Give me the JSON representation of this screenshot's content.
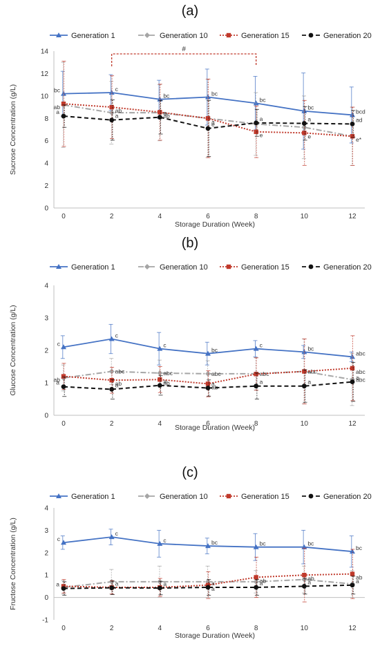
{
  "chart_data": [
    {
      "type": "line",
      "panel_label": "(a)",
      "xlabel": "Storage Duration (Week)",
      "ylabel": "Sucrose Concentration (g/L)",
      "ylim": [
        0,
        14
      ],
      "yticks": [
        0,
        2,
        4,
        6,
        8,
        10,
        12,
        14
      ],
      "x": [
        0,
        2,
        4,
        6,
        8,
        10,
        12
      ],
      "grid": false,
      "legend_position": "top",
      "bracket": {
        "from": 2,
        "to": 8,
        "label": "#"
      },
      "series": [
        {
          "name": "Generation 1",
          "values": [
            10.2,
            10.3,
            9.7,
            9.9,
            9.35,
            8.65,
            8.3
          ],
          "errors": [
            2.0,
            1.6,
            1.7,
            2.5,
            2.4,
            3.4,
            2.5
          ],
          "labels": [
            "bc",
            "c",
            "bc",
            "bc",
            "bc",
            "bc",
            "bcd"
          ]
        },
        {
          "name": "Generation 10",
          "values": [
            9.2,
            8.5,
            8.5,
            8.0,
            7.5,
            7.2,
            6.4
          ],
          "errors": [
            3.8,
            2.8,
            2.5,
            3.5,
            2.8,
            2.8,
            2.6
          ],
          "labels": [
            "",
            "",
            "",
            "",
            "",
            "",
            ""
          ]
        },
        {
          "name": "Generation 15",
          "values": [
            9.3,
            9.0,
            8.55,
            8.0,
            6.8,
            6.7,
            6.4
          ],
          "errors": [
            3.8,
            2.8,
            2.5,
            3.5,
            2.3,
            2.9,
            2.6
          ],
          "labels": [
            "ab",
            "ab",
            "ab",
            "a",
            "e",
            "e",
            "e*"
          ]
        },
        {
          "name": "Generation 20",
          "values": [
            8.2,
            7.85,
            8.1,
            7.1,
            7.6,
            7.55,
            7.5
          ],
          "errors": [
            1.0,
            1.8,
            1.5,
            2.5,
            1.2,
            1.5,
            1.2
          ],
          "labels": [
            "a",
            "a",
            "a",
            "e",
            "a",
            "a",
            "ad"
          ]
        }
      ]
    },
    {
      "type": "line",
      "panel_label": "(b)",
      "xlabel": "Storage Duration (Week)",
      "ylabel": "Glucose Concentration (g/L)",
      "ylim": [
        0,
        4
      ],
      "yticks": [
        0,
        1,
        2,
        3,
        4
      ],
      "x": [
        0,
        2,
        4,
        6,
        8,
        10,
        12
      ],
      "grid": false,
      "legend_position": "top",
      "series": [
        {
          "name": "Generation 1",
          "values": [
            2.1,
            2.35,
            2.05,
            1.9,
            2.05,
            1.95,
            1.8
          ],
          "errors": [
            0.35,
            0.45,
            0.5,
            0.35,
            0.25,
            0.2,
            0.15
          ],
          "labels": [
            "c",
            "c",
            "c",
            "bc",
            "c",
            "bc",
            "abc"
          ]
        },
        {
          "name": "Generation 10",
          "values": [
            1.15,
            1.35,
            1.3,
            1.28,
            1.28,
            1.35,
            1.1
          ],
          "errors": [
            0.4,
            0.4,
            0.4,
            0.4,
            0.5,
            1.0,
            0.8
          ],
          "labels": [
            "",
            "abc",
            "abc",
            "abc",
            "abc",
            "abc",
            "abc"
          ]
        },
        {
          "name": "Generation 15",
          "values": [
            1.2,
            1.08,
            1.1,
            0.97,
            1.27,
            1.35,
            1.45
          ],
          "errors": [
            0.4,
            0.4,
            0.4,
            0.4,
            0.5,
            1.0,
            1.0
          ],
          "labels": [
            "ab",
            "ab",
            "ab",
            "ab",
            "",
            "",
            "abc"
          ]
        },
        {
          "name": "Generation 20",
          "values": [
            0.88,
            0.8,
            0.92,
            0.84,
            0.9,
            0.9,
            1.03
          ],
          "errors": [
            0.3,
            0.3,
            0.3,
            0.25,
            0.4,
            0.5,
            0.6
          ],
          "labels": [
            "a",
            "a",
            "a",
            "a",
            "a",
            "a",
            "a"
          ]
        }
      ]
    },
    {
      "type": "line",
      "panel_label": "(c)",
      "xlabel": "Storage Duration (Week)",
      "ylabel": "Fructose Concentration (g/L)",
      "ylim": [
        -1,
        4
      ],
      "yticks": [
        -1,
        0,
        1,
        2,
        3,
        4
      ],
      "x": [
        0,
        2,
        4,
        6,
        8,
        10,
        12
      ],
      "grid": false,
      "legend_position": "top",
      "series": [
        {
          "name": "Generation 1",
          "values": [
            2.45,
            2.7,
            2.4,
            2.3,
            2.25,
            2.25,
            2.05
          ],
          "errors": [
            0.3,
            0.35,
            0.6,
            0.35,
            0.6,
            0.75,
            0.7
          ],
          "labels": [
            "c",
            "c",
            "c",
            "bc",
            "bc",
            "bc",
            "bc"
          ]
        },
        {
          "name": "Generation 10",
          "values": [
            0.45,
            0.7,
            0.7,
            0.7,
            0.7,
            0.8,
            0.6
          ],
          "errors": [
            0.3,
            0.55,
            0.7,
            0.7,
            0.5,
            0.6,
            0.6
          ],
          "labels": [
            "",
            "",
            "",
            "",
            "",
            "",
            ""
          ]
        },
        {
          "name": "Generation 15",
          "values": [
            0.5,
            0.45,
            0.45,
            0.55,
            0.9,
            1.0,
            1.05
          ],
          "errors": [
            0.3,
            0.3,
            0.4,
            0.6,
            0.9,
            1.2,
            1.1
          ],
          "labels": [
            "",
            "",
            "",
            "a",
            "ab",
            "ab",
            "ab"
          ]
        },
        {
          "name": "Generation 20",
          "values": [
            0.4,
            0.43,
            0.42,
            0.45,
            0.45,
            0.5,
            0.55
          ],
          "errors": [
            0.3,
            0.3,
            0.3,
            0.35,
            0.35,
            0.35,
            0.4
          ],
          "labels": [
            "a",
            "a",
            "a",
            "a",
            "a",
            "a",
            "a"
          ]
        }
      ]
    }
  ],
  "styles": {
    "Generation 1": {
      "color": "#4472C4",
      "dash": "",
      "marker": "triangle"
    },
    "Generation 10": {
      "color": "#A5A5A5",
      "dash": "8,3,2,3",
      "marker": "diamond"
    },
    "Generation 15": {
      "color": "#C0392B",
      "dash": "2,2",
      "marker": "square"
    },
    "Generation 20": {
      "color": "#111111",
      "dash": "6,4",
      "marker": "circle"
    }
  }
}
